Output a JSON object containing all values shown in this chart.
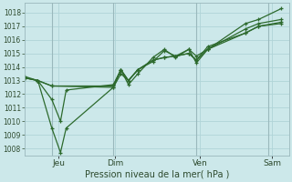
{
  "background_color": "#cce8ea",
  "grid_color": "#b0d4d8",
  "line_color": "#2d6a2d",
  "title": "Pression niveau de la mer( hPa )",
  "ylim": [
    1007.5,
    1018.7
  ],
  "yticks": [
    1008,
    1009,
    1010,
    1011,
    1012,
    1013,
    1014,
    1015,
    1016,
    1017,
    1018
  ],
  "xlim": [
    0,
    7.0
  ],
  "x_tick_positions": [
    0.9,
    2.4,
    4.65,
    6.55
  ],
  "x_tick_labels": [
    "Jeu",
    "Dim",
    "Ven",
    "Sam"
  ],
  "vlines": [
    0.72,
    2.35,
    4.55,
    6.45
  ],
  "series": [
    {
      "x": [
        0.0,
        0.35,
        0.72,
        0.95,
        1.1,
        2.35,
        2.55,
        2.75,
        3.0,
        3.4,
        3.7,
        4.0,
        4.35,
        4.55,
        4.85,
        5.85,
        6.2,
        6.8
      ],
      "y": [
        1013.2,
        1013.0,
        1009.5,
        1007.7,
        1009.5,
        1012.5,
        1013.8,
        1012.7,
        1013.5,
        1014.7,
        1015.3,
        1014.7,
        1015.3,
        1014.3,
        1015.3,
        1017.2,
        1017.5,
        1018.3
      ]
    },
    {
      "x": [
        0.0,
        0.35,
        0.72,
        0.95,
        1.1,
        2.35,
        2.55,
        2.75,
        3.0,
        3.4,
        3.7,
        4.0,
        4.35,
        4.55,
        4.85,
        5.85,
        6.2,
        6.8
      ],
      "y": [
        1013.2,
        1013.0,
        1011.6,
        1010.0,
        1012.3,
        1012.7,
        1013.8,
        1013.0,
        1013.8,
        1014.4,
        1015.2,
        1014.8,
        1015.3,
        1014.8,
        1015.3,
        1016.8,
        1017.2,
        1017.5
      ]
    },
    {
      "x": [
        0.0,
        0.35,
        0.72,
        2.35,
        2.55,
        2.75,
        3.0,
        3.4,
        3.7,
        4.0,
        4.35,
        4.55,
        4.85,
        5.85,
        6.2,
        6.8
      ],
      "y": [
        1013.3,
        1013.0,
        1012.6,
        1012.5,
        1013.5,
        1013.0,
        1013.8,
        1014.5,
        1014.7,
        1014.8,
        1015.0,
        1014.5,
        1015.5,
        1016.5,
        1017.0,
        1017.3
      ]
    },
    {
      "x": [
        0.0,
        0.35,
        0.72,
        2.35,
        2.55,
        2.75,
        3.0,
        3.4,
        3.7,
        4.0,
        4.35,
        4.55,
        4.85,
        5.85,
        6.2,
        6.8
      ],
      "y": [
        1013.2,
        1013.0,
        1012.6,
        1012.6,
        1013.8,
        1013.0,
        1013.8,
        1014.5,
        1014.7,
        1014.8,
        1015.0,
        1014.5,
        1015.3,
        1016.5,
        1017.0,
        1017.2
      ]
    }
  ]
}
